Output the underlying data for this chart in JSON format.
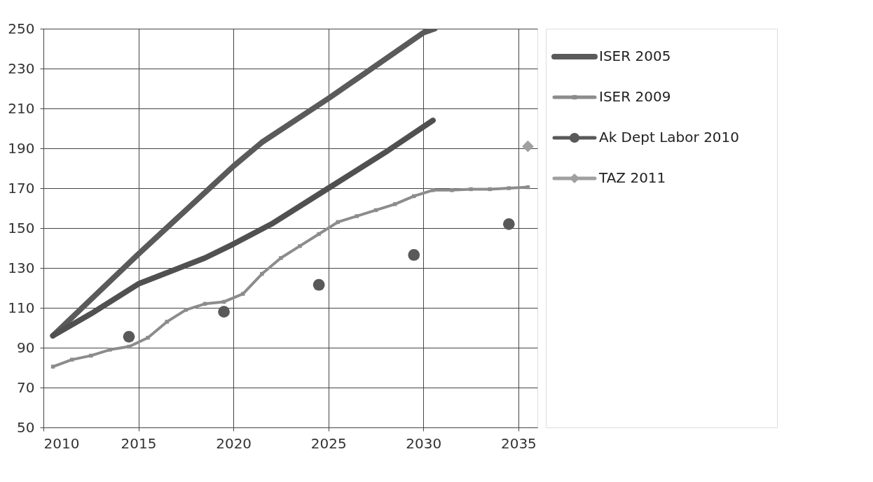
{
  "chart_data": {
    "type": "line",
    "xlim": [
      2010,
      2036
    ],
    "ylim": [
      50,
      250
    ],
    "xticks": [
      2010,
      2015,
      2020,
      2025,
      2030,
      2035
    ],
    "yticks": [
      50,
      70,
      90,
      110,
      130,
      150,
      170,
      190,
      210,
      230,
      250
    ],
    "grid": true,
    "legend": "right",
    "line_style": "solid",
    "series": [
      {
        "name": "ISER 2005",
        "color": "#5a5a5a",
        "marker": "none",
        "x": [
          2010.5,
          2015,
          2020,
          2021.5,
          2025,
          2030,
          2030.6
        ],
        "values": [
          96,
          137,
          181,
          193,
          215,
          248,
          250
        ]
      },
      {
        "color": "#505050",
        "marker": "none",
        "x": [
          2010.5,
          2012.5,
          2015,
          2018.5,
          2020,
          2022,
          2025,
          2028,
          2030.5
        ],
        "values": [
          96,
          107,
          122,
          135,
          142,
          152,
          170,
          188,
          204
        ]
      },
      {
        "name": "ISER 2009",
        "color": "#8c8c8c",
        "marker": "square",
        "x": [
          2010.5,
          2011.5,
          2012.5,
          2013.5,
          2014.5,
          2015.5,
          2016.5,
          2017.5,
          2018.5,
          2019.5,
          2020.5,
          2021.5,
          2022.5,
          2023.5,
          2024.5,
          2025.5,
          2026.5,
          2027.5,
          2028.5,
          2029.5,
          2030.5,
          2031.5,
          2032.5,
          2033.5,
          2034.5,
          2035.5
        ],
        "values": [
          80.5,
          84,
          86,
          89,
          90.5,
          95,
          103,
          109,
          112,
          113,
          117,
          127,
          135,
          141,
          147,
          153,
          156,
          159,
          162,
          166,
          169,
          169,
          169.5,
          169.5,
          170,
          170.5
        ]
      },
      {
        "name": "Ak Dept Labor 2010",
        "type": "scatter",
        "color": "#595959",
        "marker": "circle",
        "x": [
          2014.5,
          2019.5,
          2024.5,
          2029.5,
          2034.5
        ],
        "values": [
          95.5,
          108,
          121.5,
          136.5,
          152
        ]
      },
      {
        "name": "TAZ 2011",
        "type": "scatter",
        "color": "#a0a0a0",
        "marker": "diamond",
        "x": [
          2035.5
        ],
        "values": [
          191
        ]
      }
    ]
  }
}
